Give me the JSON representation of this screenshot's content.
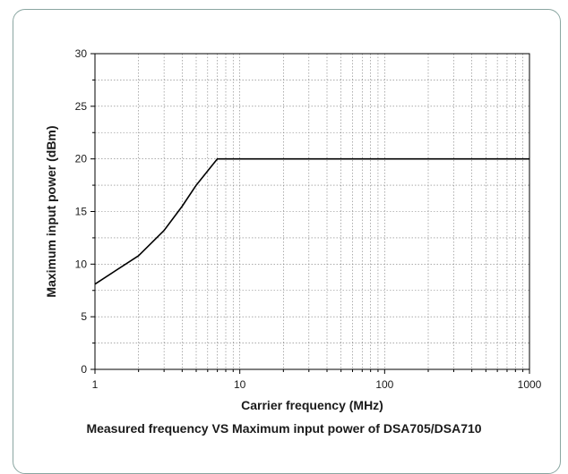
{
  "chart_data": {
    "type": "line",
    "xscale": "log",
    "xlim": [
      1,
      1000
    ],
    "ylim": [
      0,
      30
    ],
    "xlabel": "Carrier frequency (MHz)",
    "ylabel": "Maximum input power (dBm)",
    "caption": "Measured frequency VS Maximum input power of DSA705/DSA710",
    "x_ticks": [
      {
        "value": 1,
        "label": "1"
      },
      {
        "value": 10,
        "label": "10"
      },
      {
        "value": 100,
        "label": "100"
      },
      {
        "value": 1000,
        "label": "1000"
      }
    ],
    "y_ticks": [
      {
        "value": 0,
        "label": "0"
      },
      {
        "value": 5,
        "label": "5"
      },
      {
        "value": 10,
        "label": "10"
      },
      {
        "value": 15,
        "label": "15"
      },
      {
        "value": 20,
        "label": "20"
      },
      {
        "value": 25,
        "label": "25"
      },
      {
        "value": 30,
        "label": "30"
      }
    ],
    "grid": true,
    "line_color": "#000000",
    "series": [
      {
        "x": [
          1,
          2,
          3,
          4,
          5,
          7,
          1000
        ],
        "values": [
          8.1,
          10.8,
          13.2,
          15.5,
          17.5,
          20,
          20
        ]
      }
    ]
  }
}
